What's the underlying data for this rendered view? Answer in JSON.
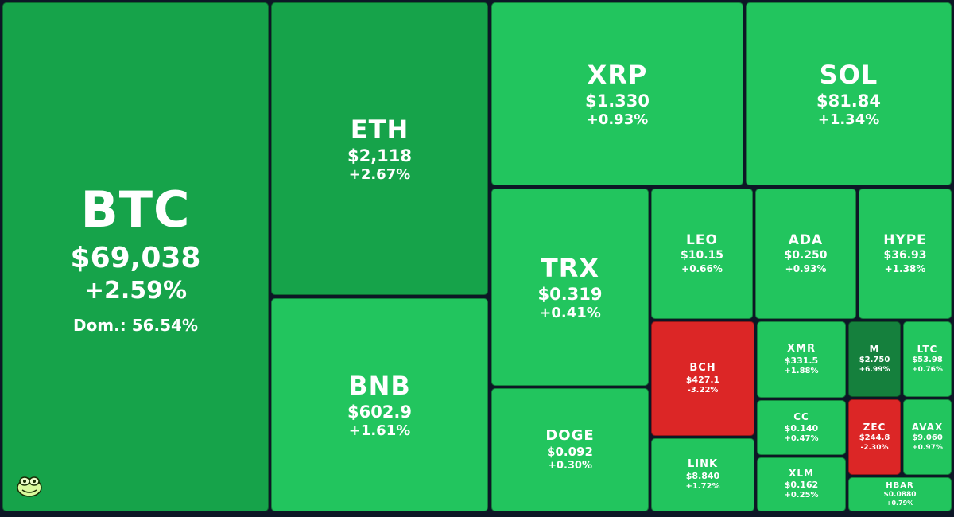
{
  "colors": {
    "background": "#0d1726",
    "up_light": "#22c55e",
    "up_mid": "#16a34a",
    "up_dark": "#15803d",
    "down": "#dc2626"
  },
  "logo": {
    "icon": "frog-face-icon"
  },
  "chart_data": {
    "type": "treemap",
    "metric": "market cap share",
    "tiles": [
      {
        "symbol": "BTC",
        "price": "$69,038",
        "change": "+2.59%",
        "change_value": 2.59,
        "dominance": "Dom.: 56.54%",
        "color": "#16a34a"
      },
      {
        "symbol": "ETH",
        "price": "$2,118",
        "change": "+2.67%",
        "change_value": 2.67,
        "color": "#16a34a"
      },
      {
        "symbol": "BNB",
        "price": "$602.9",
        "change": "+1.61%",
        "change_value": 1.61,
        "color": "#22c55e"
      },
      {
        "symbol": "XRP",
        "price": "$1.330",
        "change": "+0.93%",
        "change_value": 0.93,
        "color": "#22c55e"
      },
      {
        "symbol": "SOL",
        "price": "$81.84",
        "change": "+1.34%",
        "change_value": 1.34,
        "color": "#22c55e"
      },
      {
        "symbol": "TRX",
        "price": "$0.319",
        "change": "+0.41%",
        "change_value": 0.41,
        "color": "#22c55e"
      },
      {
        "symbol": "DOGE",
        "price": "$0.092",
        "change": "+0.30%",
        "change_value": 0.3,
        "color": "#22c55e"
      },
      {
        "symbol": "LEO",
        "price": "$10.15",
        "change": "+0.66%",
        "change_value": 0.66,
        "color": "#22c55e"
      },
      {
        "symbol": "ADA",
        "price": "$0.250",
        "change": "+0.93%",
        "change_value": 0.93,
        "color": "#22c55e"
      },
      {
        "symbol": "HYPE",
        "price": "$36.93",
        "change": "+1.38%",
        "change_value": 1.38,
        "color": "#22c55e"
      },
      {
        "symbol": "BCH",
        "price": "$427.1",
        "change": "-3.22%",
        "change_value": -3.22,
        "color": "#dc2626"
      },
      {
        "symbol": "LINK",
        "price": "$8.840",
        "change": "+1.72%",
        "change_value": 1.72,
        "color": "#22c55e"
      },
      {
        "symbol": "XMR",
        "price": "$331.5",
        "change": "+1.88%",
        "change_value": 1.88,
        "color": "#22c55e"
      },
      {
        "symbol": "M",
        "price": "$2.750",
        "change": "+6.99%",
        "change_value": 6.99,
        "color": "#15803d"
      },
      {
        "symbol": "LTC",
        "price": "$53.98",
        "change": "+0.76%",
        "change_value": 0.76,
        "color": "#22c55e"
      },
      {
        "symbol": "CC",
        "price": "$0.140",
        "change": "+0.47%",
        "change_value": 0.47,
        "color": "#22c55e"
      },
      {
        "symbol": "ZEC",
        "price": "$244.8",
        "change": "-2.30%",
        "change_value": -2.3,
        "color": "#dc2626"
      },
      {
        "symbol": "AVAX",
        "price": "$9.060",
        "change": "+0.97%",
        "change_value": 0.97,
        "color": "#22c55e"
      },
      {
        "symbol": "XLM",
        "price": "$0.162",
        "change": "+0.25%",
        "change_value": 0.25,
        "color": "#22c55e"
      },
      {
        "symbol": "HBAR",
        "price": "$0.0880",
        "change": "+0.79%",
        "change_value": 0.79,
        "color": "#22c55e"
      }
    ]
  }
}
